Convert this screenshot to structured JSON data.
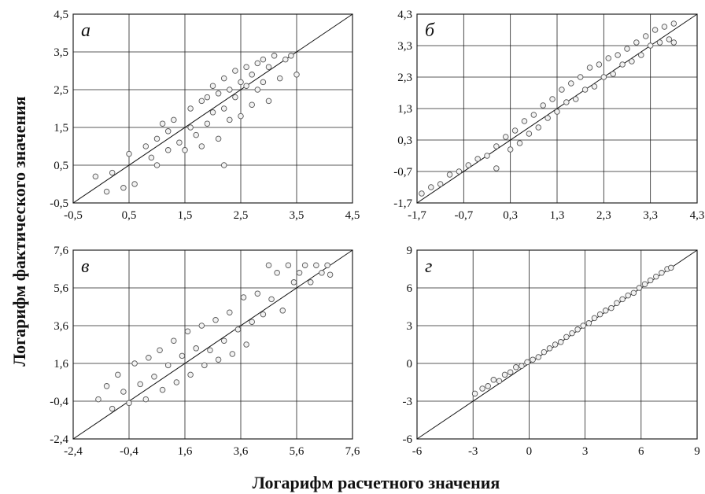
{
  "xlabel": "Логарифм расчетного значения",
  "ylabel": "Логарифм фактического значения",
  "chart_data": [
    {
      "type": "scatter",
      "panel": "а",
      "xlim": [
        -0.5,
        4.5
      ],
      "ylim": [
        -0.5,
        4.5
      ],
      "xticks": [
        "-0,5",
        "0,5",
        "1,5",
        "2,5",
        "3,5",
        "4,5"
      ],
      "yticks": [
        "-0,5",
        "0,5",
        "1,5",
        "2,5",
        "3,5",
        "4,5"
      ],
      "reference_line": "y = x",
      "grid": true,
      "points": [
        [
          -0.1,
          0.2
        ],
        [
          0.1,
          -0.2
        ],
        [
          0.2,
          0.3
        ],
        [
          0.4,
          -0.1
        ],
        [
          0.5,
          0.8
        ],
        [
          0.6,
          0.0
        ],
        [
          0.8,
          1.0
        ],
        [
          0.9,
          0.7
        ],
        [
          1.0,
          1.2
        ],
        [
          1.0,
          0.5
        ],
        [
          1.1,
          1.6
        ],
        [
          1.2,
          1.4
        ],
        [
          1.2,
          0.9
        ],
        [
          1.3,
          1.7
        ],
        [
          1.4,
          1.1
        ],
        [
          1.5,
          0.9
        ],
        [
          1.6,
          2.0
        ],
        [
          1.6,
          1.5
        ],
        [
          1.7,
          1.3
        ],
        [
          1.8,
          2.2
        ],
        [
          1.8,
          1.0
        ],
        [
          1.9,
          2.3
        ],
        [
          1.9,
          1.6
        ],
        [
          2.0,
          2.6
        ],
        [
          2.0,
          1.9
        ],
        [
          2.1,
          2.4
        ],
        [
          2.1,
          1.2
        ],
        [
          2.2,
          2.8
        ],
        [
          2.2,
          2.0
        ],
        [
          2.2,
          0.5
        ],
        [
          2.3,
          2.5
        ],
        [
          2.3,
          1.7
        ],
        [
          2.4,
          3.0
        ],
        [
          2.4,
          2.3
        ],
        [
          2.5,
          2.7
        ],
        [
          2.5,
          1.8
        ],
        [
          2.6,
          3.1
        ],
        [
          2.6,
          2.6
        ],
        [
          2.7,
          2.9
        ],
        [
          2.7,
          2.1
        ],
        [
          2.8,
          3.2
        ],
        [
          2.8,
          2.5
        ],
        [
          2.9,
          3.3
        ],
        [
          2.9,
          2.7
        ],
        [
          3.0,
          3.1
        ],
        [
          3.0,
          2.2
        ],
        [
          3.1,
          3.4
        ],
        [
          3.2,
          2.8
        ],
        [
          3.3,
          3.3
        ],
        [
          3.4,
          3.4
        ],
        [
          3.5,
          2.9
        ]
      ]
    },
    {
      "type": "scatter",
      "panel": "б",
      "xlim": [
        -1.7,
        4.3
      ],
      "ylim": [
        -1.7,
        4.3
      ],
      "xticks": [
        "-1,7",
        "-0,7",
        "0,3",
        "1,3",
        "2,3",
        "3,3",
        "4,3"
      ],
      "yticks": [
        "-1,7",
        "-0,7",
        "0,3",
        "1,3",
        "2,3",
        "3,3",
        "4,3"
      ],
      "reference_line": "y = x",
      "grid": true,
      "points": [
        [
          -1.6,
          -1.4
        ],
        [
          -1.4,
          -1.2
        ],
        [
          -1.2,
          -1.1
        ],
        [
          -1.0,
          -0.8
        ],
        [
          -0.8,
          -0.7
        ],
        [
          -0.6,
          -0.5
        ],
        [
          -0.4,
          -0.3
        ],
        [
          -0.2,
          -0.2
        ],
        [
          0.0,
          0.1
        ],
        [
          0.0,
          -0.6
        ],
        [
          0.2,
          0.4
        ],
        [
          0.3,
          0.0
        ],
        [
          0.4,
          0.6
        ],
        [
          0.5,
          0.2
        ],
        [
          0.6,
          0.9
        ],
        [
          0.7,
          0.5
        ],
        [
          0.8,
          1.1
        ],
        [
          0.9,
          0.7
        ],
        [
          1.0,
          1.4
        ],
        [
          1.1,
          1.0
        ],
        [
          1.2,
          1.6
        ],
        [
          1.3,
          1.2
        ],
        [
          1.4,
          1.9
        ],
        [
          1.5,
          1.5
        ],
        [
          1.6,
          2.1
        ],
        [
          1.7,
          1.6
        ],
        [
          1.8,
          2.3
        ],
        [
          1.9,
          1.9
        ],
        [
          2.0,
          2.6
        ],
        [
          2.1,
          2.0
        ],
        [
          2.2,
          2.7
        ],
        [
          2.3,
          2.3
        ],
        [
          2.4,
          2.9
        ],
        [
          2.5,
          2.4
        ],
        [
          2.6,
          3.0
        ],
        [
          2.7,
          2.7
        ],
        [
          2.8,
          3.2
        ],
        [
          2.9,
          2.8
        ],
        [
          3.0,
          3.4
        ],
        [
          3.1,
          3.0
        ],
        [
          3.2,
          3.6
        ],
        [
          3.3,
          3.3
        ],
        [
          3.4,
          3.8
        ],
        [
          3.5,
          3.4
        ],
        [
          3.6,
          3.9
        ],
        [
          3.7,
          3.5
        ],
        [
          3.8,
          4.0
        ],
        [
          3.8,
          3.4
        ]
      ]
    },
    {
      "type": "scatter",
      "panel": "в",
      "xlim": [
        -2.4,
        7.6
      ],
      "ylim": [
        -2.4,
        7.6
      ],
      "xticks": [
        "-2,4",
        "-0,4",
        "1,6",
        "3,6",
        "5,6",
        "7,6"
      ],
      "yticks": [
        "-2,4",
        "-0,4",
        "1,6",
        "3,6",
        "5,6",
        "7,6"
      ],
      "reference_line": "y = x",
      "grid": true,
      "points": [
        [
          -1.5,
          -0.3
        ],
        [
          -1.2,
          0.4
        ],
        [
          -1.0,
          -0.8
        ],
        [
          -0.8,
          1.0
        ],
        [
          -0.6,
          0.1
        ],
        [
          -0.4,
          -0.5
        ],
        [
          -0.2,
          1.6
        ],
        [
          0.0,
          0.5
        ],
        [
          0.2,
          -0.3
        ],
        [
          0.3,
          1.9
        ],
        [
          0.5,
          0.9
        ],
        [
          0.7,
          2.3
        ],
        [
          0.8,
          0.2
        ],
        [
          1.0,
          1.5
        ],
        [
          1.2,
          2.8
        ],
        [
          1.3,
          0.6
        ],
        [
          1.5,
          2.0
        ],
        [
          1.7,
          3.3
        ],
        [
          1.8,
          1.0
        ],
        [
          2.0,
          2.4
        ],
        [
          2.2,
          3.6
        ],
        [
          2.3,
          1.5
        ],
        [
          2.5,
          2.3
        ],
        [
          2.7,
          3.9
        ],
        [
          2.8,
          1.8
        ],
        [
          3.0,
          2.8
        ],
        [
          3.2,
          4.3
        ],
        [
          3.3,
          2.1
        ],
        [
          3.5,
          3.4
        ],
        [
          3.7,
          5.1
        ],
        [
          3.8,
          2.6
        ],
        [
          4.0,
          3.8
        ],
        [
          4.2,
          5.3
        ],
        [
          4.4,
          4.2
        ],
        [
          4.6,
          6.8
        ],
        [
          4.7,
          5.0
        ],
        [
          4.9,
          6.4
        ],
        [
          5.1,
          4.4
        ],
        [
          5.3,
          6.8
        ],
        [
          5.5,
          5.9
        ],
        [
          5.7,
          6.4
        ],
        [
          5.9,
          6.8
        ],
        [
          6.1,
          5.9
        ],
        [
          6.3,
          6.8
        ],
        [
          6.5,
          6.4
        ],
        [
          6.7,
          6.8
        ],
        [
          6.8,
          6.3
        ]
      ]
    },
    {
      "type": "scatter",
      "panel": "г",
      "xlim": [
        -6,
        9
      ],
      "ylim": [
        -6,
        9
      ],
      "xticks": [
        "-6",
        "-3",
        "0",
        "3",
        "6",
        "9"
      ],
      "yticks": [
        "-6",
        "-3",
        "0",
        "3",
        "6",
        "9"
      ],
      "reference_line": "y = x",
      "grid": true,
      "points": [
        [
          -2.9,
          -2.4
        ],
        [
          -2.5,
          -2.0
        ],
        [
          -2.2,
          -1.8
        ],
        [
          -1.9,
          -1.3
        ],
        [
          -1.6,
          -1.4
        ],
        [
          -1.3,
          -0.9
        ],
        [
          -1.0,
          -0.7
        ],
        [
          -0.7,
          -0.3
        ],
        [
          -0.4,
          -0.2
        ],
        [
          -0.1,
          0.1
        ],
        [
          0.2,
          0.3
        ],
        [
          0.5,
          0.5
        ],
        [
          0.8,
          0.9
        ],
        [
          1.1,
          1.2
        ],
        [
          1.4,
          1.5
        ],
        [
          1.7,
          1.7
        ],
        [
          2.0,
          2.1
        ],
        [
          2.3,
          2.4
        ],
        [
          2.6,
          2.7
        ],
        [
          2.9,
          3.0
        ],
        [
          3.2,
          3.2
        ],
        [
          3.5,
          3.6
        ],
        [
          3.8,
          3.9
        ],
        [
          4.1,
          4.2
        ],
        [
          4.4,
          4.4
        ],
        [
          4.7,
          4.8
        ],
        [
          5.0,
          5.1
        ],
        [
          5.3,
          5.4
        ],
        [
          5.6,
          5.6
        ],
        [
          5.9,
          6.0
        ],
        [
          6.2,
          6.3
        ],
        [
          6.5,
          6.6
        ],
        [
          6.8,
          6.9
        ],
        [
          7.1,
          7.2
        ],
        [
          7.4,
          7.5
        ],
        [
          7.6,
          7.6
        ]
      ]
    }
  ]
}
